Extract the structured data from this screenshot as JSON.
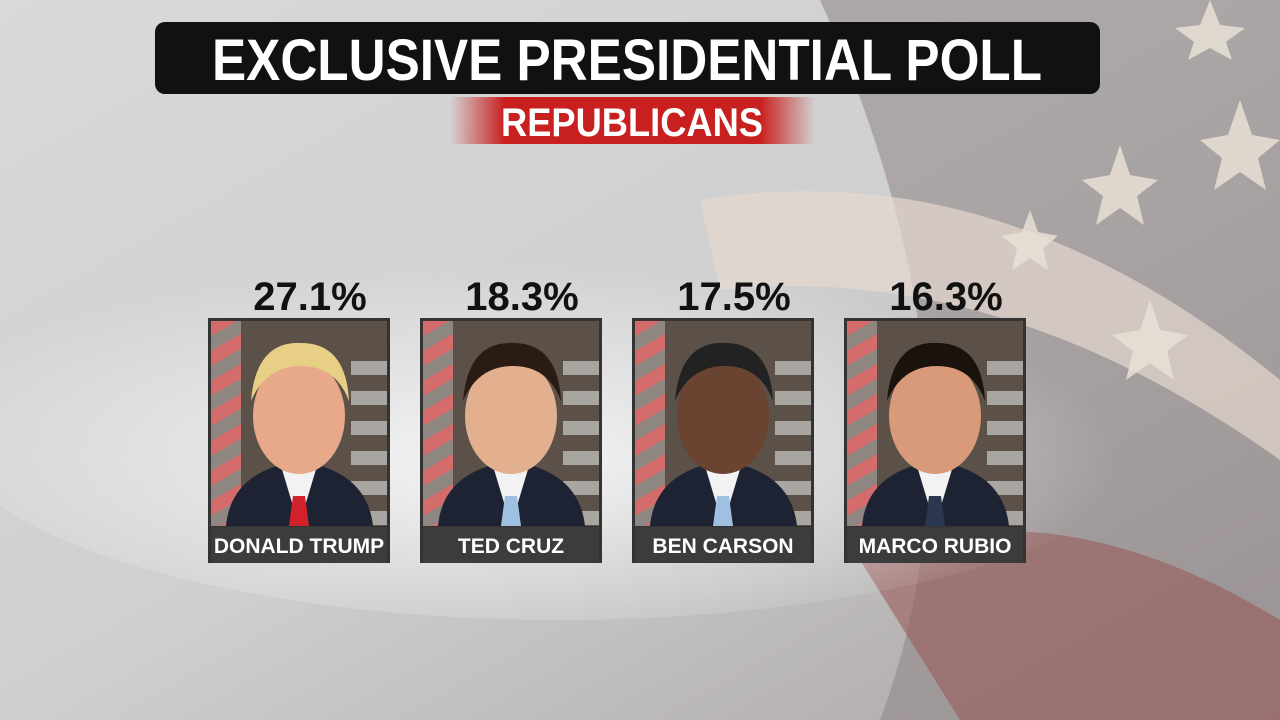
{
  "header": {
    "title": "EXCLUSIVE PRESIDENTIAL POLL",
    "subtitle": "REPUBLICANS"
  },
  "candidates": [
    {
      "name": "DONALD TRUMP",
      "percent": "27.1%"
    },
    {
      "name": "TED CRUZ",
      "percent": "18.3%"
    },
    {
      "name": "BEN CARSON",
      "percent": "17.5%"
    },
    {
      "name": "MARCO RUBIO",
      "percent": "16.3%"
    }
  ]
}
